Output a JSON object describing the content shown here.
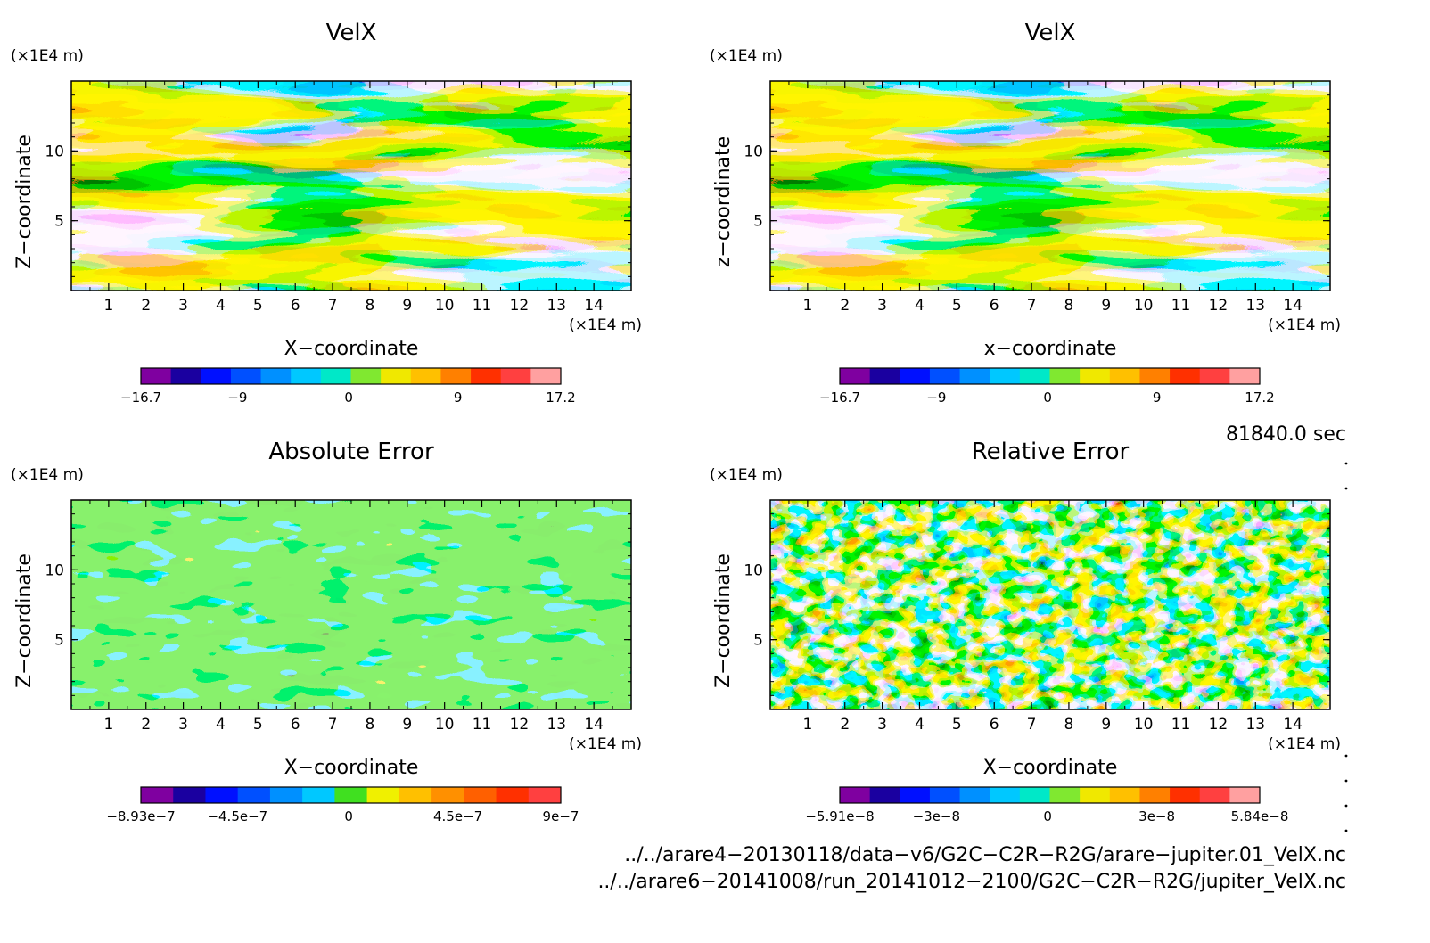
{
  "panels": [
    {
      "title": "VelX",
      "ylabel": "Z−coordinate",
      "xlabel": "X−coordinate",
      "y_unit": "(×1E4 m)",
      "x_unit": "(×1E4 m)",
      "xticks": [
        "1",
        "2",
        "3",
        "4",
        "5",
        "6",
        "7",
        "8",
        "9",
        "10",
        "11",
        "12",
        "13",
        "14"
      ],
      "yticks": [
        "10",
        "5"
      ],
      "colorbar": {
        "colors": [
          "#7f00a0",
          "#1a00a0",
          "#0010ff",
          "#0050ff",
          "#0090ff",
          "#00c8ff",
          "#00e8c8",
          "#80e830",
          "#f0e800",
          "#ffc000",
          "#ff8000",
          "#ff3000",
          "#ff4040",
          "#ffa0a0"
        ],
        "labels": [
          "−16.7",
          "−9",
          "0",
          "9",
          "17.2"
        ]
      }
    },
    {
      "title": "VelX",
      "ylabel": "z−coordinate",
      "xlabel": "x−coordinate",
      "y_unit": "(×1E4 m)",
      "x_unit": "(×1E4 m)",
      "xticks": [
        "1",
        "2",
        "3",
        "4",
        "5",
        "6",
        "7",
        "8",
        "9",
        "10",
        "11",
        "12",
        "13",
        "14"
      ],
      "yticks": [
        "10",
        "5"
      ],
      "colorbar": {
        "colors": [
          "#7f00a0",
          "#1a00a0",
          "#0010ff",
          "#0050ff",
          "#0090ff",
          "#00c8ff",
          "#00e8c8",
          "#80e830",
          "#f0e800",
          "#ffc000",
          "#ff8000",
          "#ff3000",
          "#ff4040",
          "#ffa0a0"
        ],
        "labels": [
          "−16.7",
          "−9",
          "0",
          "9",
          "17.2"
        ]
      }
    },
    {
      "title": "Absolute Error",
      "ylabel": "Z−coordinate",
      "xlabel": "X−coordinate",
      "y_unit": "(×1E4 m)",
      "x_unit": "(×1E4 m)",
      "xticks": [
        "1",
        "2",
        "3",
        "4",
        "5",
        "6",
        "7",
        "8",
        "9",
        "10",
        "11",
        "12",
        "13",
        "14"
      ],
      "yticks": [
        "10",
        "5"
      ],
      "colorbar": {
        "colors": [
          "#7f00a0",
          "#1a00a0",
          "#0010ff",
          "#0050ff",
          "#0090ff",
          "#00c8ff",
          "#40e020",
          "#f0f000",
          "#ffc000",
          "#ff9000",
          "#ff6000",
          "#ff3000",
          "#ff4040"
        ],
        "labels": [
          "−8.93e−7",
          "−4.5e−7",
          "0",
          "4.5e−7",
          "9e−7"
        ]
      }
    },
    {
      "title": "Relative Error",
      "ylabel": "Z−coordinate",
      "xlabel": "X−coordinate",
      "y_unit": "(×1E4 m)",
      "x_unit": "(×1E4 m)",
      "xticks": [
        "1",
        "2",
        "3",
        "4",
        "5",
        "6",
        "7",
        "8",
        "9",
        "10",
        "11",
        "12",
        "13",
        "14"
      ],
      "yticks": [
        "10",
        "5"
      ],
      "colorbar": {
        "colors": [
          "#7f00a0",
          "#1a00a0",
          "#0010ff",
          "#0050ff",
          "#0090ff",
          "#00c8ff",
          "#00e8c8",
          "#80e830",
          "#f0e800",
          "#ffc000",
          "#ff8000",
          "#ff3000",
          "#ff4040",
          "#ffa0a0"
        ],
        "labels": [
          "−5.91e−8",
          "−3e−8",
          "0",
          "3e−8",
          "5.84e−8"
        ]
      }
    }
  ],
  "time_label": "81840.0 sec",
  "files": [
    "../../arare4−20130118/data−v6/G2C−C2R−R2G/arare−jupiter.01_VelX.nc",
    "../../arare6−20141008/run_20141012−2100/G2C−C2R−R2G/jupiter_VelX.nc"
  ],
  "chart_data": [
    {
      "type": "heatmap",
      "title": "VelX",
      "xlabel": "X−coordinate",
      "ylabel": "Z−coordinate",
      "xlim": [
        0,
        15
      ],
      "ylim": [
        0,
        15
      ],
      "x_unit": "(×1E4 m)",
      "y_unit": "(×1E4 m)",
      "color_range": [
        -16.7,
        17.2
      ]
    },
    {
      "type": "heatmap",
      "title": "VelX",
      "xlabel": "x−coordinate",
      "ylabel": "z−coordinate",
      "xlim": [
        0,
        15
      ],
      "ylim": [
        0,
        15
      ],
      "x_unit": "(×1E4 m)",
      "y_unit": "(×1E4 m)",
      "color_range": [
        -16.7,
        17.2
      ]
    },
    {
      "type": "heatmap",
      "title": "Absolute Error",
      "xlabel": "X−coordinate",
      "ylabel": "Z−coordinate",
      "xlim": [
        0,
        15
      ],
      "ylim": [
        0,
        15
      ],
      "x_unit": "(×1E4 m)",
      "y_unit": "(×1E4 m)",
      "color_range": [
        -8.93e-07,
        9e-07
      ]
    },
    {
      "type": "heatmap",
      "title": "Relative Error",
      "xlabel": "X−coordinate",
      "ylabel": "Z−coordinate",
      "xlim": [
        0,
        15
      ],
      "ylim": [
        0,
        15
      ],
      "x_unit": "(×1E4 m)",
      "y_unit": "(×1E4 m)",
      "color_range": [
        -5.91e-08,
        5.84e-08
      ]
    }
  ]
}
